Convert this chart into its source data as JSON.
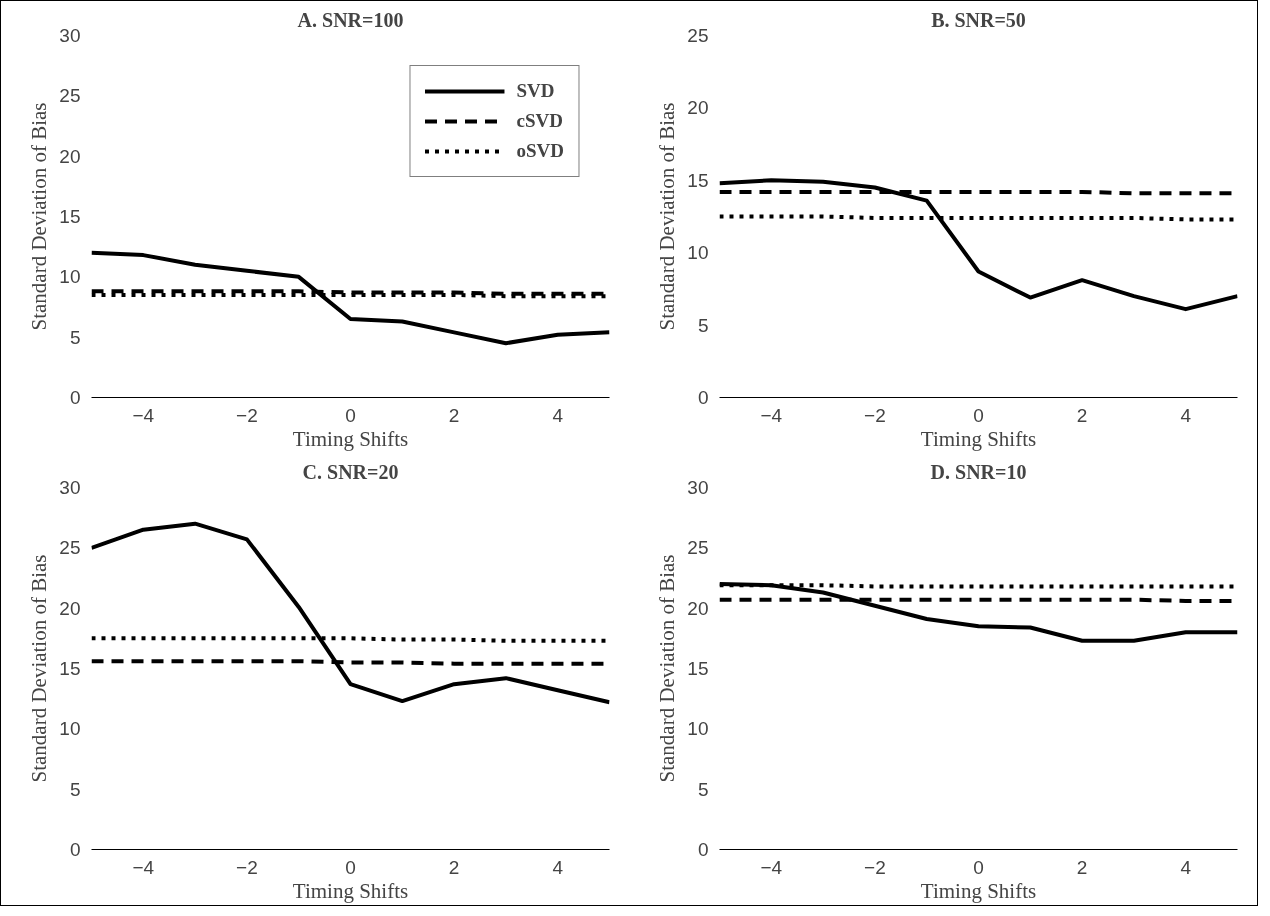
{
  "chart_data": [
    {
      "type": "line",
      "title": "A. SNR=100",
      "xlabel": "Timing Shifts",
      "ylabel": "Standard Deviation of Bias",
      "x": [
        -5,
        -4,
        -3,
        -2,
        -1,
        0,
        1,
        2,
        3,
        4,
        5
      ],
      "xlim": [
        -5,
        5
      ],
      "xticks": [
        -4,
        -2,
        0,
        2,
        4
      ],
      "ylim": [
        0,
        30
      ],
      "yticks": [
        0,
        5,
        10,
        15,
        20,
        25,
        30
      ],
      "grid": false,
      "legend": "top right",
      "series": [
        {
          "name": "SVD",
          "color": "#000000",
          "line_style": "solid",
          "values": [
            12,
            11.8,
            11,
            10.5,
            10,
            6.5,
            6.3,
            5.4,
            4.5,
            5.2,
            5.4
          ]
        },
        {
          "name": "cSVD",
          "color": "#000000",
          "line_style": "dashed",
          "values": [
            8.8,
            8.8,
            8.8,
            8.8,
            8.8,
            8.7,
            8.7,
            8.7,
            8.6,
            8.6,
            8.6
          ]
        },
        {
          "name": "oSVD",
          "color": "#000000",
          "line_style": "dotted",
          "values": [
            8.5,
            8.5,
            8.5,
            8.5,
            8.5,
            8.5,
            8.5,
            8.5,
            8.4,
            8.4,
            8.4
          ]
        }
      ]
    },
    {
      "type": "line",
      "title": "B. SNR=50",
      "xlabel": "Timing Shifts",
      "ylabel": "Standard Deviation of Bias",
      "x": [
        -5,
        -4,
        -3,
        -2,
        -1,
        0,
        1,
        2,
        3,
        4,
        5
      ],
      "xlim": [
        -5,
        5
      ],
      "xticks": [
        -4,
        -2,
        0,
        2,
        4
      ],
      "ylim": [
        0,
        25
      ],
      "yticks": [
        0,
        5,
        10,
        15,
        20,
        25
      ],
      "grid": false,
      "series": [
        {
          "color": "#000000",
          "line_style": "solid",
          "values": [
            14.8,
            15,
            14.9,
            14.5,
            13.6,
            8.7,
            6.9,
            8.1,
            7,
            6.1,
            7
          ]
        },
        {
          "color": "#000000",
          "line_style": "dashed",
          "values": [
            14.2,
            14.2,
            14.2,
            14.2,
            14.2,
            14.2,
            14.2,
            14.2,
            14.1,
            14.1,
            14.1
          ]
        },
        {
          "color": "#000000",
          "line_style": "dotted",
          "values": [
            12.5,
            12.5,
            12.5,
            12.4,
            12.4,
            12.4,
            12.4,
            12.4,
            12.4,
            12.3,
            12.3
          ]
        }
      ]
    },
    {
      "type": "line",
      "title": "C. SNR=20",
      "xlabel": "Timing Shifts",
      "ylabel": "Standard Deviation of Bias",
      "x": [
        -5,
        -4,
        -3,
        -2,
        -1,
        0,
        1,
        2,
        3,
        4,
        5
      ],
      "xlim": [
        -5,
        5
      ],
      "xticks": [
        -4,
        -2,
        0,
        2,
        4
      ],
      "ylim": [
        0,
        30
      ],
      "yticks": [
        0,
        5,
        10,
        15,
        20,
        25,
        30
      ],
      "grid": false,
      "series": [
        {
          "color": "#000000",
          "line_style": "solid",
          "values": [
            25,
            26.5,
            27,
            25.7,
            20.1,
            13.7,
            12.3,
            13.7,
            14.2,
            13.2,
            12.2
          ]
        },
        {
          "color": "#000000",
          "line_style": "dashed",
          "values": [
            15.6,
            15.6,
            15.6,
            15.6,
            15.6,
            15.5,
            15.5,
            15.4,
            15.4,
            15.4,
            15.4
          ]
        },
        {
          "color": "#000000",
          "line_style": "dotted",
          "values": [
            17.5,
            17.5,
            17.5,
            17.5,
            17.5,
            17.5,
            17.4,
            17.4,
            17.3,
            17.3,
            17.3
          ]
        }
      ]
    },
    {
      "type": "line",
      "title": "D. SNR=10",
      "xlabel": "Timing Shifts",
      "ylabel": "Standard Deviation of Bias",
      "x": [
        -5,
        -4,
        -3,
        -2,
        -1,
        0,
        1,
        2,
        3,
        4,
        5
      ],
      "xlim": [
        -5,
        5
      ],
      "xticks": [
        -4,
        -2,
        0,
        2,
        4
      ],
      "ylim": [
        0,
        30
      ],
      "yticks": [
        0,
        5,
        10,
        15,
        20,
        25,
        30
      ],
      "grid": false,
      "series": [
        {
          "color": "#000000",
          "line_style": "solid",
          "values": [
            22,
            21.9,
            21.3,
            20.2,
            19.1,
            18.5,
            18.4,
            17.3,
            17.3,
            18,
            18
          ]
        },
        {
          "color": "#000000",
          "line_style": "dashed",
          "values": [
            20.7,
            20.7,
            20.7,
            20.7,
            20.7,
            20.7,
            20.7,
            20.7,
            20.7,
            20.6,
            20.6
          ]
        },
        {
          "color": "#000000",
          "line_style": "dotted",
          "values": [
            21.9,
            21.9,
            21.9,
            21.8,
            21.8,
            21.8,
            21.8,
            21.8,
            21.8,
            21.8,
            21.8
          ]
        }
      ]
    }
  ]
}
